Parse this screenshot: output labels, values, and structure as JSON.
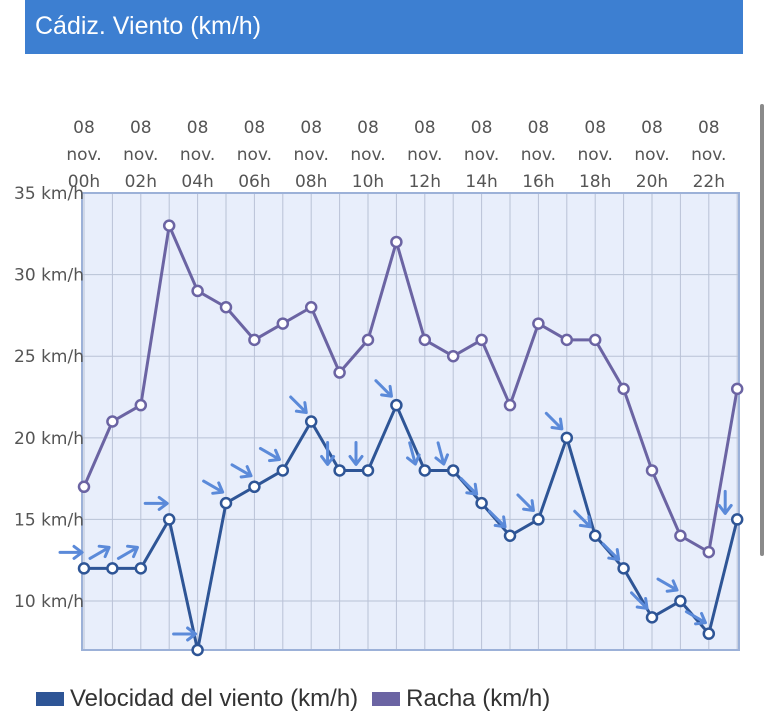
{
  "header": {
    "title": "Cádiz. Viento (km/h)"
  },
  "colors": {
    "header_bg": "#3d7fd1",
    "wind": "#2e5596",
    "gust": "#6b64a3",
    "arrow": "#5b8ad9",
    "plot_bg": "#e8eefb"
  },
  "chart_data": {
    "type": "line",
    "title": "",
    "xlabel": "",
    "ylabel": "",
    "ylim": [
      7,
      35
    ],
    "y_ticks": [
      10,
      15,
      20,
      25,
      30,
      35
    ],
    "y_tick_labels": [
      "10 km/h",
      "15 km/h",
      "20 km/h",
      "25 km/h",
      "30 km/h",
      "35 km/h"
    ],
    "x_hours": [
      0,
      1,
      2,
      3,
      4,
      5,
      6,
      7,
      8,
      9,
      10,
      11,
      12,
      13,
      14,
      15,
      16,
      17,
      18,
      19,
      20,
      21,
      22,
      23
    ],
    "x_tick_labels": [
      [
        "08",
        "nov.",
        "00h"
      ],
      [
        "08",
        "nov.",
        "02h"
      ],
      [
        "08",
        "nov.",
        "04h"
      ],
      [
        "08",
        "nov.",
        "06h"
      ],
      [
        "08",
        "nov.",
        "08h"
      ],
      [
        "08",
        "nov.",
        "10h"
      ],
      [
        "08",
        "nov.",
        "12h"
      ],
      [
        "08",
        "nov.",
        "14h"
      ],
      [
        "08",
        "nov.",
        "16h"
      ],
      [
        "08",
        "nov.",
        "18h"
      ],
      [
        "08",
        "nov.",
        "20h"
      ],
      [
        "08",
        "nov.",
        "22h"
      ]
    ],
    "grid": true,
    "legend_position": "bottom-left",
    "series": [
      {
        "name": "Velocidad del viento (km/h)",
        "color": "#2e5596",
        "values": [
          12,
          12,
          12,
          15,
          7,
          16,
          17,
          18,
          21,
          18,
          18,
          22,
          18,
          18,
          16,
          14,
          15,
          20,
          14,
          12,
          9,
          10,
          8,
          15
        ],
        "arrow_angles": [
          0,
          -30,
          -30,
          0,
          0,
          30,
          30,
          30,
          45,
          90,
          90,
          45,
          75,
          75,
          45,
          45,
          45,
          45,
          45,
          45,
          45,
          30,
          30,
          90
        ]
      },
      {
        "name": "Racha (km/h)",
        "color": "#6b64a3",
        "values": [
          17,
          21,
          22,
          33,
          29,
          28,
          26,
          27,
          28,
          24,
          26,
          32,
          26,
          25,
          26,
          22,
          27,
          26,
          26,
          23,
          18,
          14,
          13,
          23
        ]
      }
    ]
  }
}
